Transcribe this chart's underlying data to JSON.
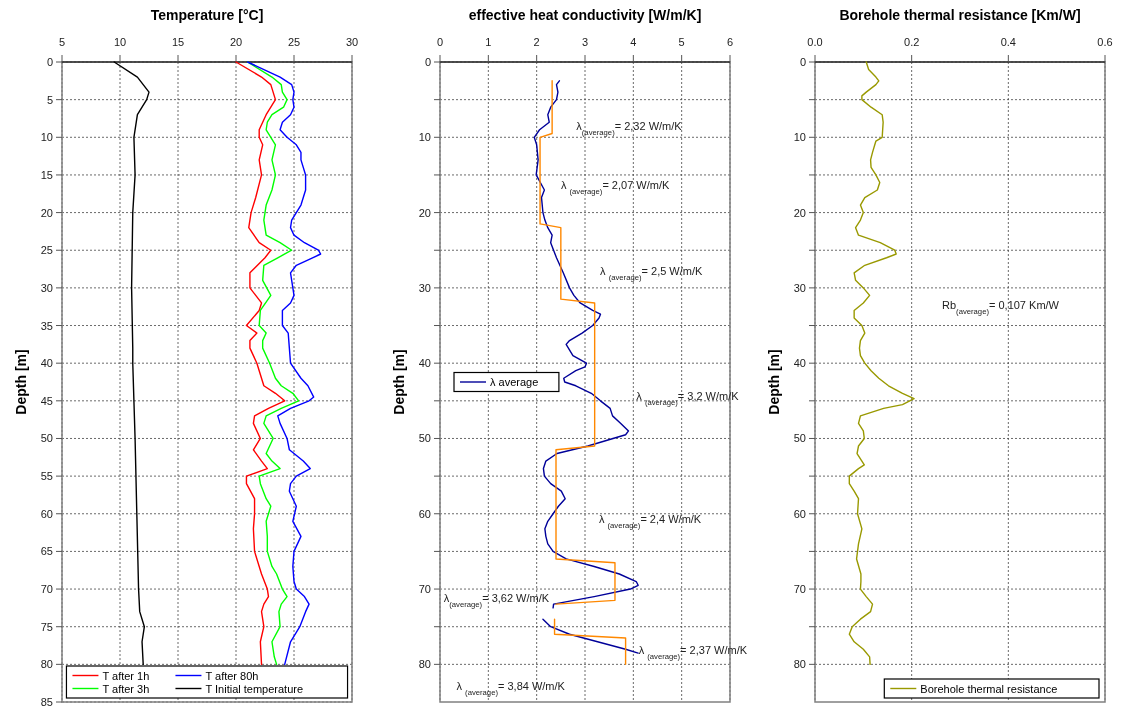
{
  "chart_data": [
    {
      "type": "line",
      "xlabel": "Temperature [°C]",
      "ylabel": "Depth [m]",
      "xlim": [
        5,
        30
      ],
      "xticks": [
        5,
        10,
        15,
        20,
        25,
        30
      ],
      "ylim": [
        85,
        0
      ],
      "yticks": [
        0,
        5,
        10,
        15,
        20,
        25,
        30,
        35,
        40,
        45,
        50,
        55,
        60,
        65,
        70,
        75,
        80,
        85
      ],
      "grid": true,
      "legend": "bottom",
      "series": [
        {
          "name": "T after 1h",
          "color": "#ff0000",
          "x": [
            20.0,
            22.2,
            23.0,
            23.4,
            22.6,
            22.0,
            22.0,
            22.3,
            22.0,
            22.2,
            21.7,
            21.3,
            21.1,
            22.0,
            23.0,
            22.5,
            21.2,
            21.2,
            21.7,
            22.2,
            22.0,
            20.9,
            21.8,
            21.2,
            21.2,
            21.8,
            22.2,
            22.4,
            23.4,
            24.2,
            22.8,
            21.6,
            21.5,
            22.1,
            21.5,
            22.2,
            22.7,
            20.9,
            20.9,
            21.6,
            21.6,
            21.5,
            21.6,
            22.2,
            22.7,
            22.8,
            22.4,
            22.2,
            22.4,
            22.1,
            22.2
          ],
          "values": [
            0,
            2,
            3,
            5,
            7,
            9,
            10,
            11,
            13,
            15,
            18,
            20,
            22,
            24,
            25,
            26,
            28,
            30,
            31,
            32,
            33,
            35,
            36,
            37,
            38,
            40,
            42,
            43,
            44,
            45,
            46,
            47,
            48,
            50,
            51.5,
            53,
            54,
            55,
            56,
            58,
            60,
            62,
            65,
            68,
            70,
            71,
            72,
            73,
            75,
            77,
            80
          ]
        },
        {
          "name": "T after 3h",
          "color": "#00ff00",
          "x": [
            21.0,
            23.1,
            23.9,
            24.0,
            24.4,
            24.1,
            23.1,
            22.7,
            22.6,
            23.4,
            23.1,
            23.4,
            23.1,
            22.6,
            22.4,
            22.6,
            23.8,
            24.8,
            23.6,
            22.4,
            22.3,
            23.0,
            22.1,
            22.0,
            22.6,
            22.3,
            22.3,
            22.9,
            23.4,
            23.9,
            24.9,
            25.4,
            23.9,
            22.6,
            22.4,
            23.2,
            22.6,
            23.1,
            23.8,
            22.0,
            22.1,
            22.6,
            23.0,
            22.6,
            22.7,
            22.7,
            23.1,
            23.5,
            24.0,
            24.4,
            23.9,
            23.7,
            23.8,
            23.1,
            23.3,
            23.5
          ],
          "values": [
            0,
            2,
            3,
            4,
            5,
            6,
            7,
            8,
            9,
            11,
            13,
            15,
            17,
            19,
            21,
            23,
            24,
            25,
            26,
            27,
            29,
            31,
            33,
            35,
            36,
            37,
            38,
            40,
            42,
            43,
            44,
            45,
            46,
            47,
            48,
            50,
            52,
            53,
            54,
            55,
            56,
            58,
            59,
            61,
            63,
            65,
            67,
            68,
            70,
            71,
            72,
            73,
            75,
            77,
            79,
            80
          ]
        },
        {
          "name": "T after 80h",
          "color": "#0000ff",
          "x": [
            21.0,
            23.8,
            24.8,
            25.0,
            24.9,
            25.0,
            24.7,
            24.0,
            23.8,
            24.4,
            25.2,
            25.6,
            25.6,
            26.0,
            26.0,
            25.6,
            25.2,
            24.8,
            24.7,
            25.0,
            25.9,
            27.1,
            27.3,
            26.6,
            25.2,
            24.7,
            24.9,
            25.0,
            24.7,
            24.0,
            24.0,
            24.5,
            24.6,
            24.7,
            25.6,
            26.2,
            26.7,
            26.3,
            24.7,
            23.6,
            23.8,
            24.4,
            24.6,
            25.8,
            26.4,
            25.2,
            24.7,
            24.6,
            25.2,
            24.9,
            25.6,
            25.0,
            24.9,
            25.0,
            25.2,
            25.9,
            26.3,
            26.0,
            25.5,
            24.7,
            24.2
          ],
          "values": [
            0,
            2,
            3,
            4,
            5,
            6,
            7,
            8,
            9,
            10,
            11,
            12,
            13,
            15,
            17,
            19,
            20,
            21,
            22,
            23,
            24,
            25,
            25.5,
            26,
            27,
            28,
            30,
            31,
            32,
            33,
            35,
            36,
            38,
            40,
            42,
            43,
            44.5,
            45,
            46,
            47,
            48,
            50,
            51.5,
            53,
            54,
            55,
            56,
            57,
            59,
            61,
            63,
            65,
            67,
            69,
            70,
            71,
            72,
            73,
            75,
            77,
            80
          ]
        },
        {
          "name": "T Initial temperature",
          "color": "#000000",
          "x": [
            9.5,
            11.5,
            12.5,
            12.3,
            11.5,
            11.2,
            11.3,
            11.1,
            11.0,
            11.1,
            11.1,
            11.3,
            11.45,
            11.6,
            11.7,
            12.1,
            11.9,
            12.0
          ],
          "values": [
            0,
            2,
            4,
            5,
            7,
            10,
            15,
            20,
            30,
            38,
            40,
            50,
            60,
            70,
            73,
            75,
            77,
            80
          ]
        }
      ]
    },
    {
      "type": "line",
      "xlabel": "effective heat conductivity [W/m/K]",
      "ylabel": "Depth [m]",
      "xlim": [
        0,
        6
      ],
      "xticks": [
        0,
        1,
        2,
        3,
        4,
        5,
        6
      ],
      "ylim": [
        85,
        0
      ],
      "yticks": [
        0,
        {
          "value": 5,
          "label": null
        },
        10,
        {
          "value": 15,
          "label": null
        },
        20,
        {
          "value": 25,
          "label": null
        },
        30,
        {
          "value": 35,
          "label": null
        },
        40,
        {
          "value": 45,
          "label": null
        },
        50,
        {
          "value": 55,
          "label": null
        },
        60,
        {
          "value": 65,
          "label": null
        },
        70,
        {
          "value": 75,
          "label": null
        },
        80
      ],
      "grid": true,
      "legend": "left",
      "series": [
        {
          "name": "λ average",
          "color": "#000099",
          "x": [
            2.47,
            2.41,
            2.44,
            2.41,
            2.29,
            2.23,
            2.26,
            2.06,
            1.95,
            2.0,
            2.03,
            2.01,
            1.99,
            2.16,
            2.1,
            2.13,
            2.17,
            2.23,
            2.32,
            2.29,
            2.35,
            2.41,
            2.48,
            2.55,
            2.68,
            2.77,
            2.9,
            3.16,
            3.32,
            3.29,
            3.16,
            2.94,
            2.68,
            2.61,
            2.75,
            3.03,
            3.0,
            2.81,
            2.56,
            2.58,
            2.81,
            3.13,
            3.32,
            3.52,
            3.57,
            3.74,
            3.9,
            3.84,
            3.58,
            3.06,
            2.42,
            2.19,
            2.14,
            2.16,
            2.29,
            2.51,
            2.59,
            2.45,
            2.34,
            2.23,
            2.17,
            2.19,
            2.23,
            2.34,
            2.61,
            3.19,
            3.71,
            4.06,
            4.1,
            3.94,
            3.19,
            2.35,
            2.34,
            null,
            2.13,
            2.29,
            2.68,
            3.26,
            3.84,
            4.1
          ],
          "values": [
            2.5,
            3,
            4,
            5,
            6,
            7,
            8,
            9,
            10,
            11,
            13,
            14,
            15,
            17,
            18,
            20,
            21,
            22,
            23,
            24,
            25,
            26,
            27,
            28,
            30,
            31,
            32,
            33,
            33.5,
            34,
            35,
            36,
            37,
            37.5,
            39,
            40,
            40.5,
            41,
            42,
            42.5,
            43,
            44,
            45,
            46,
            47,
            48,
            49,
            49.5,
            50,
            51,
            52,
            53,
            54,
            55,
            56,
            57,
            58,
            59,
            60,
            61,
            62,
            63,
            64,
            65,
            66,
            67,
            68,
            69,
            69.5,
            70,
            71,
            72,
            72.5,
            null,
            74,
            75,
            76,
            77,
            78,
            78.5
          ]
        },
        {
          "color": "#ff8800",
          "x": [
            2.32,
            2.32,
            2.07,
            2.07,
            2.5,
            2.5,
            3.2,
            3.2,
            2.4,
            2.4,
            3.62,
            3.62,
            2.4,
            null,
            2.37,
            2.37,
            3.84,
            3.84
          ],
          "values": [
            2.5,
            9.5,
            10,
            21.5,
            22,
            31.5,
            32,
            51,
            51.5,
            66,
            66.5,
            71.5,
            72,
            null,
            74,
            76,
            76.5,
            80
          ]
        }
      ],
      "annotations": [
        "λ$_{(average)}$= 2,32 W/m/K",
        "λ $_{(average)}$= 2,07 W/m/K",
        "λ $_{(average)}$= 2,5 W/m/K",
        "λ $_{(average)}$= 3,2 W/m/K",
        "λ $_{(average)}$= 2,4 W/m/K",
        "λ$_{(average)}$= 3,62 W/m/K",
        {
          "text": "λ $_{(average)}$= 2,37 W/m/K",
          "x": 4.11,
          "y": 78.6
        },
        "λ $_{(average)}$= 3,84 W/m/K"
      ]
    },
    {
      "type": "line",
      "xlabel": "Borehole thermal resistance [Km/W]",
      "ylabel": "Depth [m]",
      "xlim": [
        0,
        0.6
      ],
      "xticks": [
        {
          "value": 0,
          "label": "0.0"
        },
        {
          "value": 0.2,
          "label": "0.2"
        },
        {
          "value": 0.4,
          "label": "0.4"
        },
        {
          "value": 0.6,
          "label": "0.6"
        }
      ],
      "ylim": [
        85,
        0
      ],
      "yticks": [
        0,
        {
          "value": 5,
          "label": null
        },
        10,
        {
          "value": 15,
          "label": null
        },
        20,
        {
          "value": 25,
          "label": null
        },
        30,
        {
          "value": 35,
          "label": null
        },
        40,
        {
          "value": 45,
          "label": null
        },
        50,
        {
          "value": 55,
          "label": null
        },
        60,
        {
          "value": 65,
          "label": null
        },
        70,
        {
          "value": 75,
          "label": null
        },
        80
      ],
      "grid": true,
      "legend": "bottom right",
      "series": [
        {
          "name": "Borehole thermal resistance",
          "color": "#999900",
          "x": [
            0.106,
            0.111,
            0.126,
            0.132,
            0.126,
            0.106,
            0.097,
            0.097,
            0.116,
            0.139,
            0.141,
            0.139,
            0.126,
            0.119,
            0.115,
            0.116,
            0.126,
            0.134,
            0.129,
            0.103,
            0.094,
            0.1,
            0.094,
            0.084,
            0.09,
            0.135,
            0.165,
            0.168,
            0.148,
            0.103,
            0.081,
            0.084,
            0.1,
            0.113,
            0.1,
            0.081,
            0.081,
            0.097,
            0.103,
            0.094,
            0.092,
            0.094,
            0.103,
            0.116,
            0.132,
            0.152,
            0.181,
            0.205,
            0.181,
            0.142,
            0.094,
            0.09,
            0.1,
            0.102,
            0.09,
            0.087,
            0.097,
            0.102,
            0.09,
            0.071,
            0.071,
            0.081,
            0.09,
            0.088,
            0.097,
            0.09,
            0.086,
            0.095,
            0.095,
            0.094,
            0.106,
            0.119,
            0.115,
            0.094,
            0.077,
            0.071,
            0.081,
            0.1,
            0.113,
            0.114
          ],
          "values": [
            0,
            1,
            2,
            2.5,
            3,
            4,
            4.5,
            5,
            6,
            7,
            8,
            10,
            10.5,
            12,
            13,
            14,
            15,
            16,
            17,
            18,
            19,
            20,
            21,
            22,
            23,
            24,
            25,
            25.5,
            26,
            27,
            28,
            29,
            30,
            31,
            32,
            33,
            34,
            35,
            36,
            37,
            38,
            39,
            40,
            41,
            42,
            43,
            44,
            44.7,
            45.5,
            46,
            47,
            48,
            49,
            50,
            51,
            52,
            53,
            53.5,
            54,
            55,
            56,
            57,
            58,
            60,
            62,
            64,
            66,
            68,
            69,
            70,
            71,
            72,
            73,
            74,
            75,
            76,
            77,
            78,
            79,
            80
          ]
        }
      ],
      "annotations": [
        "Rb$_{(average)}$= 0,107 Km/W"
      ]
    }
  ]
}
